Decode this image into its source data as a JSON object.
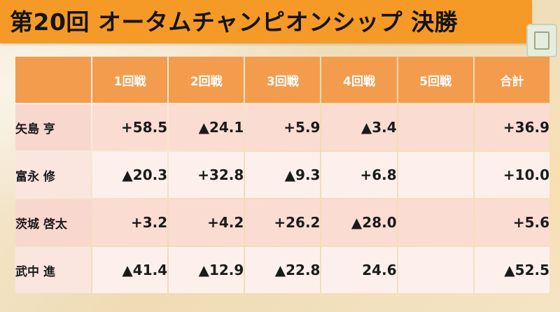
{
  "title": "第20回 オータムチャンピオンシップ 決勝",
  "colors": {
    "title_bar": "#f59a27",
    "header_cell": "#f49c4e",
    "row_light": "#fdf0ec",
    "row_pink": "#fbdcd2"
  },
  "table": {
    "headers": [
      "1回戦",
      "2回戦",
      "3回戦",
      "4回戦",
      "5回戦",
      "合計"
    ],
    "rows": [
      {
        "name": "矢島 亨",
        "cells": [
          "+58.5",
          "▲24.1",
          "+5.9",
          "▲3.4",
          "",
          "+36.9"
        ]
      },
      {
        "name": "富永 修",
        "cells": [
          "▲20.3",
          "+32.8",
          "▲9.3",
          "+6.8",
          "",
          "+10.0"
        ]
      },
      {
        "name": "茨城 啓太",
        "cells": [
          "+3.2",
          "+4.2",
          "+26.2",
          "▲28.0",
          "",
          "+5.6"
        ]
      },
      {
        "name": "武中 進",
        "cells": [
          "▲41.4",
          "▲12.9",
          "▲22.8",
          "24.6",
          "",
          "▲52.5"
        ]
      }
    ]
  }
}
